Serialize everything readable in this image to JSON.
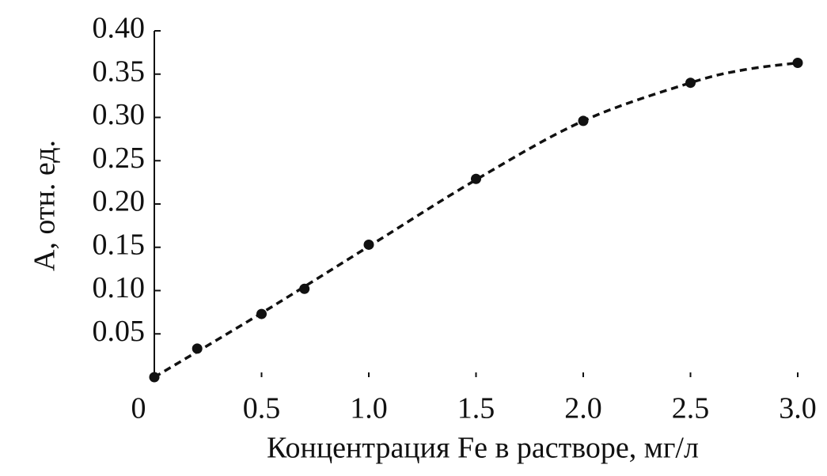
{
  "chart_data": {
    "type": "scatter",
    "x_label": "Концентрация Fe в растворе, мг/л",
    "y_label": "А, отн. ед.",
    "x": [
      0,
      0.2,
      0.5,
      0.7,
      1.0,
      1.5,
      2.0,
      2.5,
      3.0
    ],
    "values": [
      0,
      0.033,
      0.073,
      0.102,
      0.153,
      0.229,
      0.296,
      0.34,
      0.363
    ],
    "color": "#111111",
    "curve": {
      "x": [
        0,
        0.5,
        1.0,
        1.5,
        2.0,
        2.5,
        2.75,
        3.0
      ],
      "values": [
        0,
        0.074,
        0.151,
        0.228,
        0.296,
        0.34,
        0.355,
        0.363
      ],
      "color": "#111111",
      "dashed": true
    },
    "xlim": [
      0,
      3.0
    ],
    "ylim": [
      0,
      0.4
    ],
    "xticks": [
      0,
      0.5,
      {
        "value": 1,
        "label": "1.0"
      },
      1.5,
      {
        "value": 2,
        "label": "2.0"
      },
      2.5,
      {
        "value": 3,
        "label": "3.0"
      }
    ],
    "yticks": [
      0.05,
      {
        "value": 0.1,
        "label": "0.10"
      },
      0.15,
      {
        "value": 0.2,
        "label": "0.20"
      },
      0.25,
      {
        "value": 0.3,
        "label": "0.30"
      },
      0.35,
      {
        "value": 0.4,
        "label": "0.40"
      }
    ],
    "grid": false
  }
}
